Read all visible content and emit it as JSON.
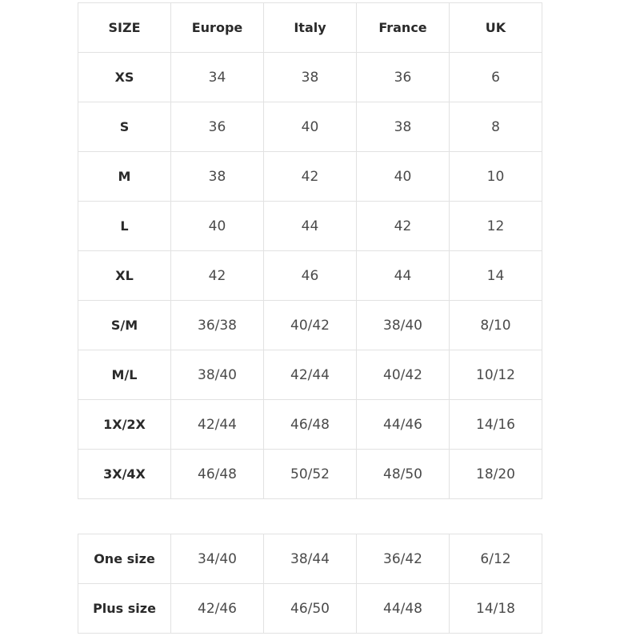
{
  "headers": [
    "SIZE",
    "Europe",
    "Italy",
    "France",
    "UK"
  ],
  "main_rows": [
    [
      "XS",
      "34",
      "38",
      "36",
      "6"
    ],
    [
      "S",
      "36",
      "40",
      "38",
      "8"
    ],
    [
      "M",
      "38",
      "42",
      "40",
      "10"
    ],
    [
      "L",
      "40",
      "44",
      "42",
      "12"
    ],
    [
      "XL",
      "42",
      "46",
      "44",
      "14"
    ],
    [
      "S/M",
      "36/38",
      "40/42",
      "38/40",
      "8/10"
    ],
    [
      "M/L",
      "38/40",
      "42/44",
      "40/42",
      "10/12"
    ],
    [
      "1X/2X",
      "42/44",
      "46/48",
      "44/46",
      "14/16"
    ],
    [
      "3X/4X",
      "46/48",
      "50/52",
      "48/50",
      "18/20"
    ]
  ],
  "extra_rows": [
    [
      "One size",
      "34/40",
      "38/44",
      "36/42",
      "6/12"
    ],
    [
      "Plus size",
      "42/46",
      "46/50",
      "44/48",
      "14/18"
    ]
  ]
}
